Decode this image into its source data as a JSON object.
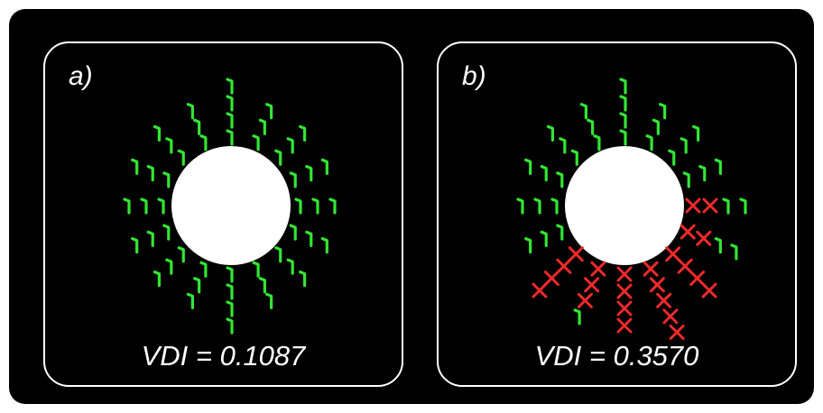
{
  "panels": [
    {
      "label": "a)",
      "vdi_text": "VDI = 0.1087",
      "rays": [
        {
          "a": -90,
          "v": "gggg"
        },
        {
          "a": -67.5,
          "v": "ggg"
        },
        {
          "a": -45,
          "v": "ggg"
        },
        {
          "a": -22.5,
          "v": "ggg"
        },
        {
          "a": 0,
          "v": "ggg"
        },
        {
          "a": 22.5,
          "v": "ggg"
        },
        {
          "a": 45,
          "v": "ggg"
        },
        {
          "a": 67.5,
          "v": "ggg"
        },
        {
          "a": 90,
          "v": "gggg"
        },
        {
          "a": 112.5,
          "v": "ggg"
        },
        {
          "a": 135,
          "v": "ggg"
        },
        {
          "a": 157.5,
          "v": "ggg"
        },
        {
          "a": 180,
          "v": "ggg"
        },
        {
          "a": 202.5,
          "v": "ggg"
        },
        {
          "a": 225,
          "v": "ggg"
        },
        {
          "a": 247.5,
          "v": "ggg"
        }
      ]
    },
    {
      "label": "b)",
      "vdi_text": "VDI = 0.3570",
      "rays": [
        {
          "a": -90,
          "v": "gggg"
        },
        {
          "a": -67.5,
          "v": "ggg"
        },
        {
          "a": -45,
          "v": "ggg"
        },
        {
          "a": -22.5,
          "v": "ggg"
        },
        {
          "a": 0,
          "v": "rrgg"
        },
        {
          "a": 22.5,
          "v": "rrgg"
        },
        {
          "a": 45,
          "v": "rrrr"
        },
        {
          "a": 67.5,
          "v": "rrrrr"
        },
        {
          "a": 90,
          "v": "rrrr"
        },
        {
          "a": 112.5,
          "v": "rrrg"
        },
        {
          "a": 135,
          "v": "rrrr"
        },
        {
          "a": 157.5,
          "v": "ggg"
        },
        {
          "a": 180,
          "v": "ggg"
        },
        {
          "a": 202.5,
          "v": "ggg"
        },
        {
          "a": 225,
          "v": "ggg"
        },
        {
          "a": 247.5,
          "v": "ggg"
        }
      ]
    }
  ],
  "colors": {
    "background": "#000000",
    "disk": "#ffffff",
    "valid": "#33e633",
    "invalid": "#ee2a2a"
  }
}
